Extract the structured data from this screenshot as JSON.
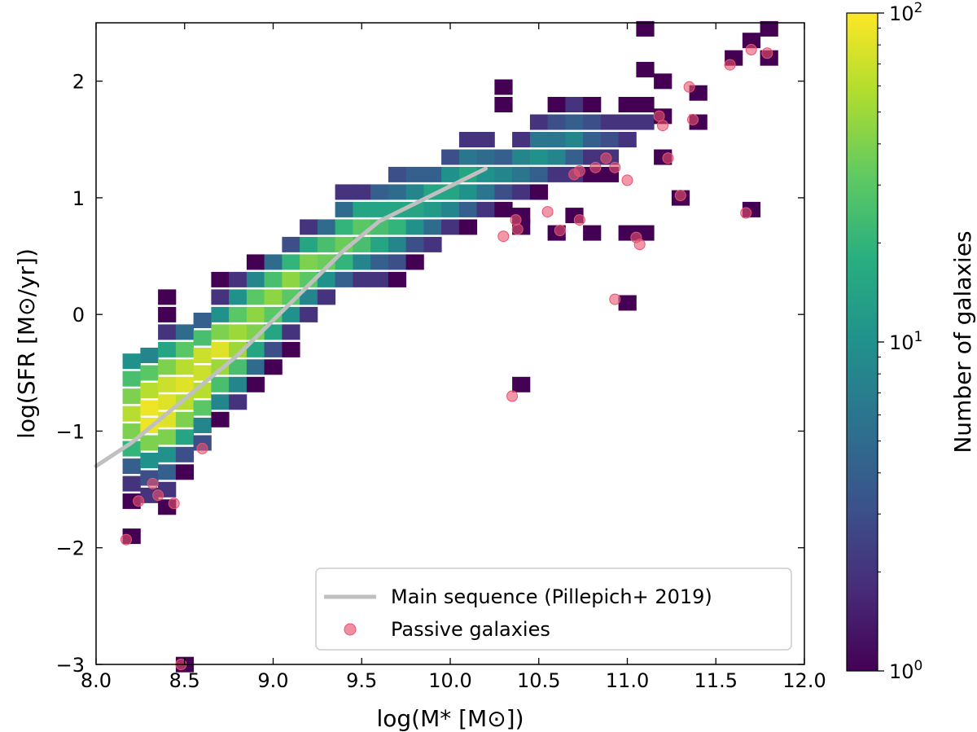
{
  "chart_data": {
    "type": "heatmap",
    "title": "",
    "xlabel": "log(M* [M⊙])",
    "ylabel": "log(SFR [M⊙/yr])",
    "xlim": [
      8.0,
      12.0
    ],
    "ylim": [
      -3.0,
      2.5
    ],
    "xticks": [
      8.0,
      8.5,
      9.0,
      9.5,
      10.0,
      10.5,
      11.0,
      11.5,
      12.0
    ],
    "xtick_labels": [
      "8.0",
      "8.5",
      "9.0",
      "9.5",
      "10.0",
      "10.5",
      "11.0",
      "11.5",
      "12.0"
    ],
    "yticks": [
      -3,
      -2,
      -1,
      0,
      1,
      2
    ],
    "ytick_labels": [
      "−3",
      "−2",
      "−1",
      "0",
      "1",
      "2"
    ],
    "bin_size": {
      "x": 0.1,
      "y": 0.13
    },
    "colorbar": {
      "label": "Number of galaxies",
      "scale": "log",
      "min": 1,
      "max": 100,
      "tick_values": [
        1,
        10,
        100
      ],
      "tick_base": "10",
      "tick_exponents": [
        "0",
        "1",
        "2"
      ],
      "colormap": "viridis"
    },
    "bins": [
      [
        8.2,
        -1.9,
        1
      ],
      [
        8.2,
        -1.6,
        1
      ],
      [
        8.2,
        -1.45,
        2
      ],
      [
        8.2,
        -1.3,
        4
      ],
      [
        8.2,
        -1.15,
        20
      ],
      [
        8.2,
        -1.0,
        40
      ],
      [
        8.2,
        -0.85,
        60
      ],
      [
        8.2,
        -0.7,
        40
      ],
      [
        8.2,
        -0.55,
        25
      ],
      [
        8.2,
        -0.4,
        10
      ],
      [
        8.3,
        -1.55,
        2
      ],
      [
        8.3,
        -1.4,
        3
      ],
      [
        8.3,
        -1.25,
        10
      ],
      [
        8.3,
        -1.1,
        40
      ],
      [
        8.3,
        -0.95,
        90
      ],
      [
        8.3,
        -0.8,
        90
      ],
      [
        8.3,
        -0.65,
        60
      ],
      [
        8.3,
        -0.5,
        30
      ],
      [
        8.3,
        -0.35,
        8
      ],
      [
        8.4,
        -1.65,
        1
      ],
      [
        8.4,
        -1.5,
        2
      ],
      [
        8.4,
        -1.35,
        4
      ],
      [
        8.4,
        -1.2,
        10
      ],
      [
        8.4,
        -1.05,
        40
      ],
      [
        8.4,
        -0.9,
        80
      ],
      [
        8.4,
        -0.75,
        80
      ],
      [
        8.4,
        -0.6,
        70
      ],
      [
        8.4,
        -0.45,
        40
      ],
      [
        8.4,
        -0.3,
        15
      ],
      [
        8.4,
        -0.15,
        2
      ],
      [
        8.4,
        0.0,
        1
      ],
      [
        8.4,
        0.15,
        1
      ],
      [
        8.5,
        -1.35,
        1
      ],
      [
        8.5,
        -1.2,
        3
      ],
      [
        8.5,
        -1.05,
        15
      ],
      [
        8.5,
        -0.9,
        40
      ],
      [
        8.5,
        -0.75,
        60
      ],
      [
        8.5,
        -0.6,
        80
      ],
      [
        8.5,
        -0.45,
        60
      ],
      [
        8.5,
        -0.3,
        30
      ],
      [
        8.5,
        -0.15,
        5
      ],
      [
        8.6,
        -1.1,
        3
      ],
      [
        8.6,
        -0.95,
        8
      ],
      [
        8.6,
        -0.8,
        30
      ],
      [
        8.6,
        -0.65,
        60
      ],
      [
        8.6,
        -0.5,
        70
      ],
      [
        8.6,
        -0.35,
        70
      ],
      [
        8.6,
        -0.2,
        25
      ],
      [
        8.6,
        -0.05,
        4
      ],
      [
        8.7,
        -0.9,
        1
      ],
      [
        8.7,
        -0.75,
        8
      ],
      [
        8.7,
        -0.6,
        25
      ],
      [
        8.7,
        -0.45,
        50
      ],
      [
        8.7,
        -0.3,
        80
      ],
      [
        8.7,
        -0.15,
        40
      ],
      [
        8.7,
        0.0,
        10
      ],
      [
        8.7,
        0.15,
        2
      ],
      [
        8.7,
        0.3,
        1
      ],
      [
        8.8,
        -0.75,
        2
      ],
      [
        8.8,
        -0.6,
        8
      ],
      [
        8.8,
        -0.45,
        25
      ],
      [
        8.8,
        -0.3,
        50
      ],
      [
        8.8,
        -0.15,
        50
      ],
      [
        8.8,
        0.0,
        30
      ],
      [
        8.8,
        0.15,
        10
      ],
      [
        8.8,
        0.3,
        2
      ],
      [
        8.9,
        -0.6,
        1
      ],
      [
        8.9,
        -0.45,
        5
      ],
      [
        8.9,
        -0.3,
        15
      ],
      [
        8.9,
        -0.15,
        40
      ],
      [
        8.9,
        0.0,
        45
      ],
      [
        8.9,
        0.15,
        30
      ],
      [
        8.9,
        0.3,
        8
      ],
      [
        8.9,
        0.45,
        1
      ],
      [
        9.0,
        -0.45,
        1
      ],
      [
        9.0,
        -0.3,
        3
      ],
      [
        9.0,
        -0.15,
        15
      ],
      [
        9.0,
        0.0,
        30
      ],
      [
        9.0,
        0.15,
        45
      ],
      [
        9.0,
        0.3,
        25
      ],
      [
        9.0,
        0.45,
        5
      ],
      [
        9.1,
        -0.3,
        1
      ],
      [
        9.1,
        -0.15,
        2
      ],
      [
        9.1,
        0.0,
        10
      ],
      [
        9.1,
        0.15,
        30
      ],
      [
        9.1,
        0.3,
        45
      ],
      [
        9.1,
        0.45,
        20
      ],
      [
        9.1,
        0.6,
        3
      ],
      [
        9.2,
        0.0,
        2
      ],
      [
        9.2,
        0.15,
        8
      ],
      [
        9.2,
        0.3,
        30
      ],
      [
        9.2,
        0.45,
        40
      ],
      [
        9.2,
        0.6,
        15
      ],
      [
        9.2,
        0.75,
        2
      ],
      [
        9.3,
        0.15,
        2
      ],
      [
        9.3,
        0.3,
        10
      ],
      [
        9.3,
        0.45,
        35
      ],
      [
        9.3,
        0.6,
        25
      ],
      [
        9.3,
        0.75,
        5
      ],
      [
        9.4,
        0.3,
        4
      ],
      [
        9.4,
        0.45,
        20
      ],
      [
        9.4,
        0.6,
        35
      ],
      [
        9.4,
        0.75,
        20
      ],
      [
        9.4,
        0.9,
        5
      ],
      [
        9.4,
        1.05,
        2
      ],
      [
        9.5,
        0.3,
        2
      ],
      [
        9.5,
        0.45,
        8
      ],
      [
        9.5,
        0.6,
        25
      ],
      [
        9.5,
        0.75,
        30
      ],
      [
        9.5,
        0.9,
        15
      ],
      [
        9.5,
        1.05,
        2
      ],
      [
        9.6,
        0.3,
        2
      ],
      [
        9.6,
        0.45,
        4
      ],
      [
        9.6,
        0.6,
        15
      ],
      [
        9.6,
        0.75,
        25
      ],
      [
        9.6,
        0.9,
        15
      ],
      [
        9.6,
        1.05,
        4
      ],
      [
        9.7,
        0.3,
        1
      ],
      [
        9.7,
        0.45,
        3
      ],
      [
        9.7,
        0.6,
        8
      ],
      [
        9.7,
        0.75,
        20
      ],
      [
        9.7,
        0.9,
        15
      ],
      [
        9.7,
        1.05,
        5
      ],
      [
        9.7,
        1.2,
        3
      ],
      [
        9.8,
        0.45,
        1
      ],
      [
        9.8,
        0.6,
        3
      ],
      [
        9.8,
        0.75,
        10
      ],
      [
        9.8,
        0.9,
        15
      ],
      [
        9.8,
        1.05,
        8
      ],
      [
        9.8,
        1.2,
        4
      ],
      [
        9.9,
        0.6,
        2
      ],
      [
        9.9,
        0.75,
        5
      ],
      [
        9.9,
        0.9,
        12
      ],
      [
        9.9,
        1.05,
        15
      ],
      [
        9.9,
        1.2,
        4
      ],
      [
        10.0,
        0.75,
        2
      ],
      [
        10.0,
        0.9,
        8
      ],
      [
        10.0,
        1.05,
        15
      ],
      [
        10.0,
        1.2,
        10
      ],
      [
        10.0,
        1.35,
        3
      ],
      [
        10.1,
        0.75,
        1
      ],
      [
        10.1,
        0.9,
        4
      ],
      [
        10.1,
        1.05,
        10
      ],
      [
        10.1,
        1.2,
        15
      ],
      [
        10.1,
        1.35,
        6
      ],
      [
        10.1,
        1.5,
        2
      ],
      [
        10.2,
        0.9,
        2
      ],
      [
        10.2,
        1.05,
        6
      ],
      [
        10.2,
        1.2,
        10
      ],
      [
        10.2,
        1.35,
        5
      ],
      [
        10.2,
        1.5,
        2
      ],
      [
        10.3,
        0.9,
        1
      ],
      [
        10.3,
        1.05,
        3
      ],
      [
        10.3,
        1.2,
        8
      ],
      [
        10.3,
        1.35,
        4
      ],
      [
        10.3,
        1.8,
        1
      ],
      [
        10.3,
        1.95,
        1
      ],
      [
        10.4,
        0.75,
        1
      ],
      [
        10.4,
        1.05,
        2
      ],
      [
        10.4,
        1.2,
        6
      ],
      [
        10.4,
        1.35,
        8
      ],
      [
        10.4,
        1.5,
        2
      ],
      [
        10.5,
        1.05,
        1
      ],
      [
        10.5,
        1.2,
        4
      ],
      [
        10.5,
        1.35,
        10
      ],
      [
        10.5,
        1.5,
        6
      ],
      [
        10.5,
        1.65,
        2
      ],
      [
        10.6,
        1.2,
        2
      ],
      [
        10.6,
        1.35,
        8
      ],
      [
        10.6,
        1.5,
        6
      ],
      [
        10.6,
        1.65,
        3
      ],
      [
        10.6,
        1.8,
        1
      ],
      [
        10.7,
        1.2,
        2
      ],
      [
        10.7,
        1.35,
        4
      ],
      [
        10.7,
        1.5,
        8
      ],
      [
        10.7,
        1.65,
        4
      ],
      [
        10.7,
        1.8,
        2
      ],
      [
        10.8,
        1.2,
        1
      ],
      [
        10.8,
        1.35,
        2
      ],
      [
        10.8,
        1.5,
        4
      ],
      [
        10.8,
        1.65,
        3
      ],
      [
        10.8,
        1.8,
        1
      ],
      [
        10.9,
        1.2,
        1
      ],
      [
        10.9,
        1.35,
        2
      ],
      [
        10.9,
        1.5,
        3
      ],
      [
        10.9,
        1.65,
        2
      ],
      [
        11.0,
        1.5,
        2
      ],
      [
        11.0,
        1.65,
        2
      ],
      [
        11.0,
        1.8,
        1
      ],
      [
        11.1,
        1.65,
        2
      ],
      [
        11.1,
        1.8,
        1
      ],
      [
        11.1,
        2.1,
        1
      ],
      [
        10.4,
        -0.6,
        1
      ],
      [
        10.4,
        0.85,
        1
      ],
      [
        10.6,
        0.7,
        1
      ],
      [
        10.7,
        0.85,
        1
      ],
      [
        10.8,
        0.7,
        1
      ],
      [
        11.0,
        0.1,
        1
      ],
      [
        11.0,
        0.7,
        1
      ],
      [
        11.1,
        0.7,
        1
      ],
      [
        11.2,
        1.35,
        1
      ],
      [
        11.2,
        1.7,
        1
      ],
      [
        11.2,
        2.0,
        1
      ],
      [
        11.3,
        1.0,
        1
      ],
      [
        11.4,
        1.9,
        1
      ],
      [
        11.4,
        1.65,
        1
      ],
      [
        11.6,
        2.2,
        1
      ],
      [
        11.7,
        2.35,
        1
      ],
      [
        11.7,
        0.9,
        1
      ],
      [
        11.8,
        2.45,
        1
      ],
      [
        11.8,
        2.2,
        1
      ],
      [
        11.1,
        2.45,
        1
      ],
      [
        8.5,
        -3.0,
        1
      ]
    ],
    "main_sequence": {
      "label": "Main sequence (Pillepich+ 2019)",
      "color": "#c0c0c0",
      "x": [
        8.0,
        8.2,
        8.4,
        8.6,
        8.8,
        9.0,
        9.2,
        9.4,
        9.6,
        9.8,
        10.0,
        10.2
      ],
      "y": [
        -1.3,
        -1.1,
        -0.85,
        -0.6,
        -0.35,
        -0.05,
        0.25,
        0.55,
        0.8,
        0.95,
        1.1,
        1.25
      ]
    },
    "passive_galaxies": {
      "label": "Passive galaxies",
      "color": "#e8536f",
      "points": [
        [
          8.17,
          -1.93
        ],
        [
          8.24,
          -1.6
        ],
        [
          8.32,
          -1.45
        ],
        [
          8.35,
          -1.55
        ],
        [
          8.44,
          -1.62
        ],
        [
          8.6,
          -1.15
        ],
        [
          8.48,
          -3.0
        ],
        [
          10.35,
          -0.7
        ],
        [
          10.3,
          0.67
        ],
        [
          10.37,
          0.81
        ],
        [
          10.38,
          0.73
        ],
        [
          10.55,
          0.88
        ],
        [
          10.62,
          0.72
        ],
        [
          10.7,
          1.2
        ],
        [
          10.73,
          1.23
        ],
        [
          10.73,
          0.81
        ],
        [
          10.82,
          1.26
        ],
        [
          10.88,
          1.34
        ],
        [
          10.93,
          1.26
        ],
        [
          11.0,
          1.15
        ],
        [
          11.05,
          0.66
        ],
        [
          11.07,
          0.6
        ],
        [
          10.93,
          0.13
        ],
        [
          11.18,
          1.7
        ],
        [
          11.2,
          1.62
        ],
        [
          11.23,
          1.34
        ],
        [
          11.3,
          1.02
        ],
        [
          11.35,
          1.95
        ],
        [
          11.37,
          1.67
        ],
        [
          11.58,
          2.14
        ],
        [
          11.67,
          0.87
        ],
        [
          11.7,
          2.27
        ],
        [
          11.79,
          2.24
        ]
      ]
    },
    "legend": {
      "position": "lower-right",
      "entries": [
        "Main sequence (Pillepich+ 2019)",
        "Passive galaxies"
      ]
    }
  }
}
